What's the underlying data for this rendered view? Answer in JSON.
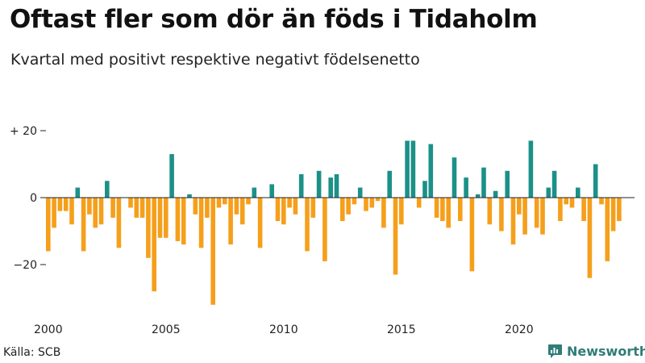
{
  "header": {
    "title": "Oftast fler som dör än föds i Tidaholm",
    "subtitle": "Kvartal med positivt respektive negativt födelsenetto"
  },
  "footer": {
    "source": "Källa: SCB",
    "brand": "Newsworthy"
  },
  "colors": {
    "positive": "#1b9188",
    "negative": "#f59f1b",
    "brand": "#2f7d78"
  },
  "chart_data": {
    "type": "bar",
    "title": "Oftast fler som dör än föds i Tidaholm",
    "subtitle": "Kvartal med positivt respektive negativt födelsenetto",
    "xlabel": "",
    "ylabel": "",
    "ylim": [
      -33,
      22
    ],
    "grid": false,
    "x_start": 2000,
    "period": "quarter",
    "yticks": [
      {
        "value": 20,
        "label": "+ 20"
      },
      {
        "value": 0,
        "label": "0"
      },
      {
        "value": -20,
        "label": "−20"
      }
    ],
    "xticks": [
      {
        "index": 0,
        "label": "2000"
      },
      {
        "index": 20,
        "label": "2005"
      },
      {
        "index": 40,
        "label": "2010"
      },
      {
        "index": 60,
        "label": "2015"
      },
      {
        "index": 80,
        "label": "2020"
      }
    ],
    "values": [
      -16,
      -9,
      -4,
      -4,
      -8,
      3,
      -16,
      -5,
      -9,
      -8,
      5,
      -6,
      -15,
      0,
      -3,
      -6,
      -6,
      -18,
      -28,
      -12,
      -12,
      13,
      -13,
      -14,
      1,
      -5,
      -15,
      -6,
      -32,
      -3,
      -2,
      -14,
      -5,
      -8,
      -2,
      3,
      -15,
      0,
      4,
      -7,
      -8,
      -3,
      -5,
      7,
      -16,
      -6,
      8,
      -19,
      6,
      7,
      -7,
      -5,
      -2,
      3,
      -4,
      -3,
      -1,
      -9,
      8,
      -23,
      -8,
      17,
      17,
      -3,
      5,
      16,
      -6,
      -7,
      -9,
      12,
      -7,
      6,
      -22,
      1,
      9,
      -8,
      2,
      -10,
      8,
      -14,
      -5,
      -11,
      17,
      -9,
      -11,
      3,
      8,
      -7,
      -2,
      -3,
      3,
      -7,
      -24,
      10,
      -2,
      -19,
      -10,
      -7
    ]
  }
}
